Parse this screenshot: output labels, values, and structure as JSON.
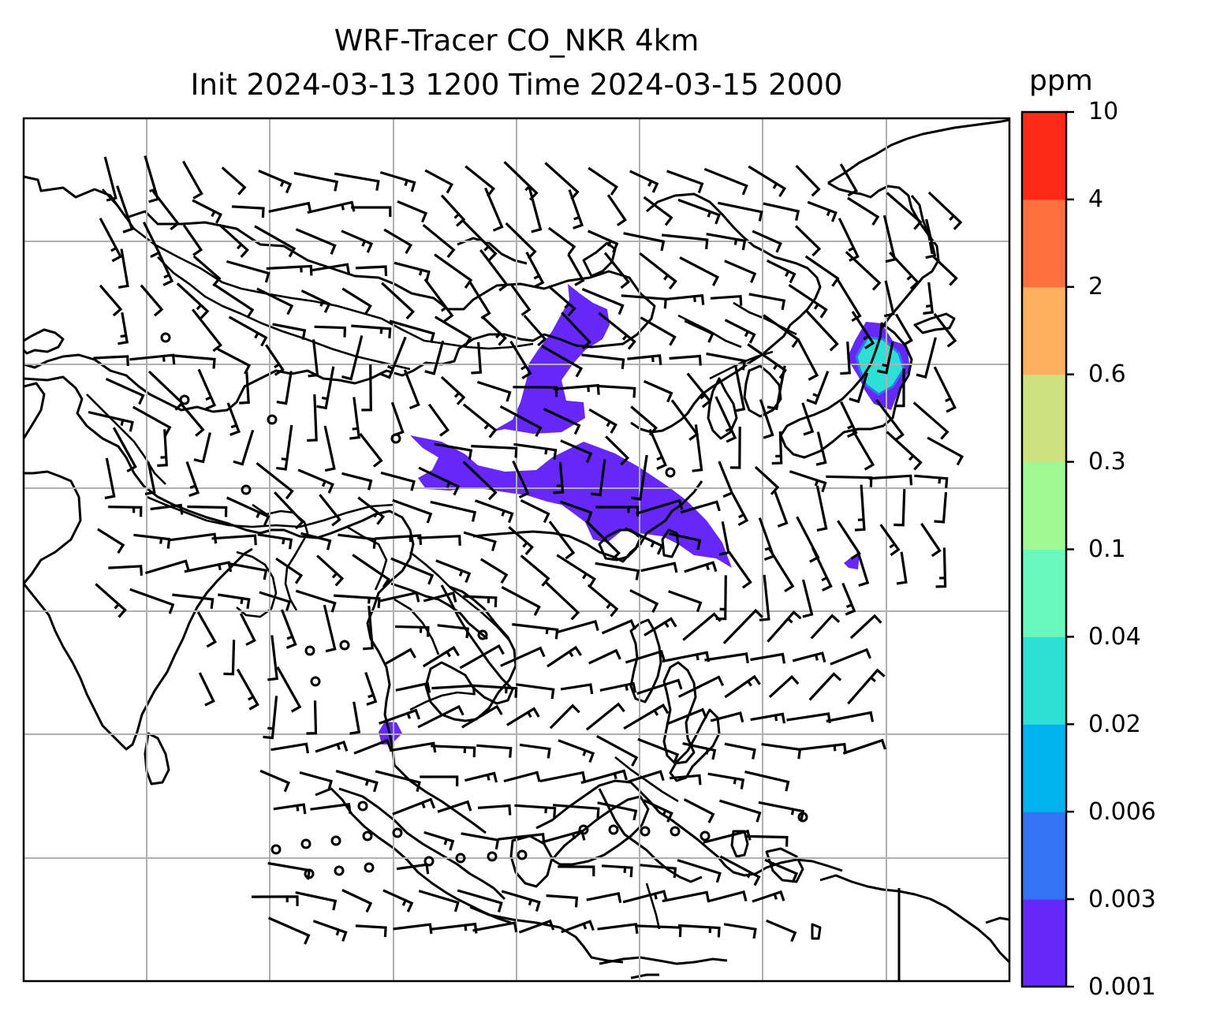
{
  "figure": {
    "title_line1": "WRF-Tracer CO_NKR 4km",
    "title_line2": "Init 2024-03-13 1200 Time 2024-03-15 2000"
  },
  "colorbar": {
    "unit": "ppm",
    "levels": [
      "0.001",
      "0.003",
      "0.006",
      "0.02",
      "0.04",
      "0.1",
      "0.3",
      "0.6",
      "2",
      "4",
      "10"
    ],
    "colors": [
      "#6528f8",
      "#3274f2",
      "#00b3ec",
      "#2edfd6",
      "#68f7bc",
      "#a0f895",
      "#cfe07f",
      "#feb061",
      "#fe7040",
      "#fe2a17"
    ]
  },
  "map": {
    "gridlines": true,
    "coastline_color": "#000000",
    "grid_color": "#b0b0b0",
    "tracer_color": "#6528f8",
    "icons": [
      "wind-barb-icon",
      "calm-wind-circle-icon"
    ]
  }
}
